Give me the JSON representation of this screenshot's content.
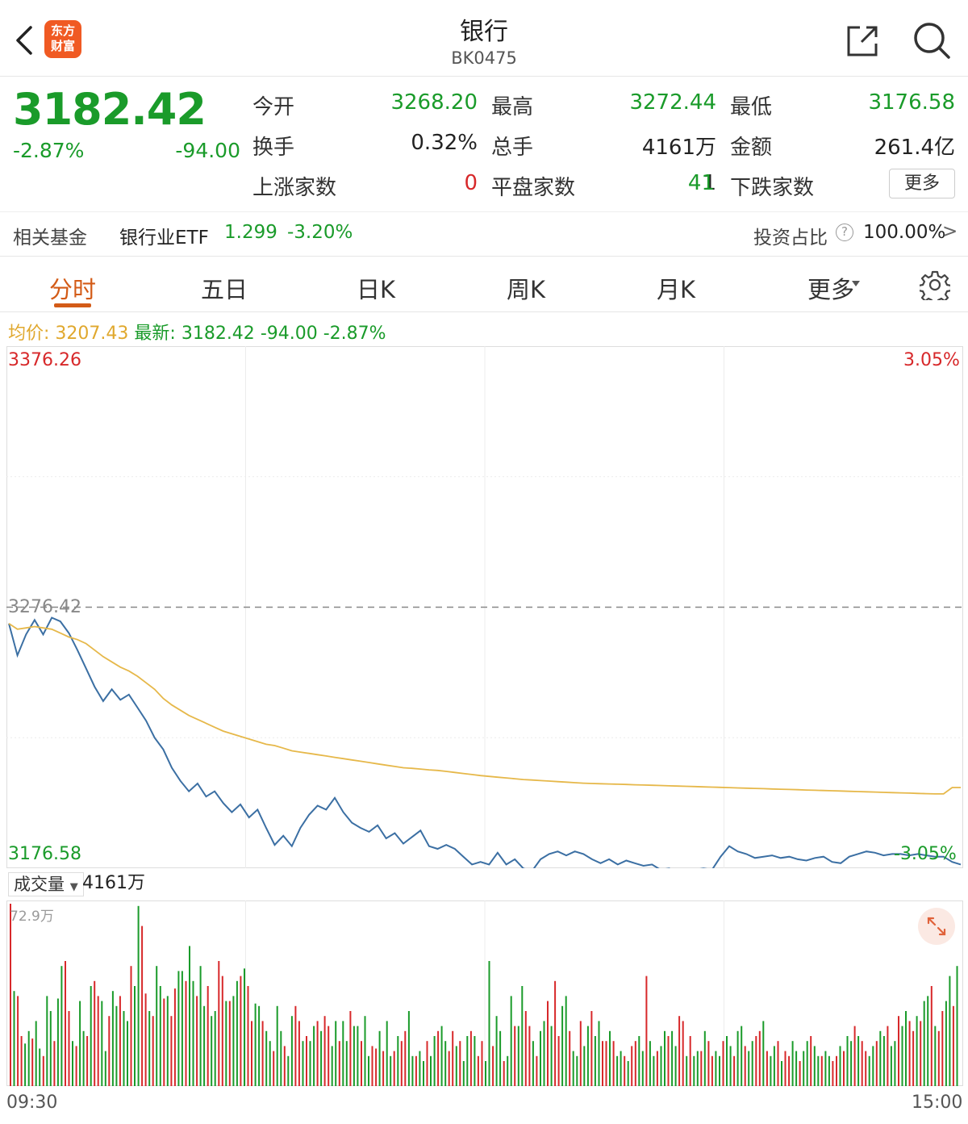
{
  "header": {
    "title": "银行",
    "code": "BK0475",
    "logo_text": "东方财富"
  },
  "quote": {
    "price": "3182.42",
    "change_pct": "-2.87%",
    "change": "-94.00",
    "fields": [
      {
        "label": "今开",
        "value": "3268.20",
        "color": "green"
      },
      {
        "label": "最高",
        "value": "3272.44",
        "color": "green"
      },
      {
        "label": "最低",
        "value": "3176.58",
        "color": "green"
      },
      {
        "label": "换手",
        "value": "0.32%",
        "color": "black"
      },
      {
        "label": "总手",
        "value": "4161万",
        "color": "black"
      },
      {
        "label": "金额",
        "value": "261.4亿",
        "color": "black"
      },
      {
        "label": "上涨家数",
        "value": "0",
        "color": "red"
      },
      {
        "label": "平盘家数",
        "value": "1",
        "color": "black"
      },
      {
        "label": "下跌家数",
        "value": "41",
        "color": "green"
      }
    ],
    "more_label": "更多"
  },
  "fund": {
    "label": "相关基金",
    "name": "银行业ETF",
    "price": "1.299",
    "change_pct": "-3.20%",
    "ratio_label": "投资占比",
    "ratio_value": "100.00%",
    "chevron": ">"
  },
  "tabs": [
    {
      "label": "分时",
      "active": true
    },
    {
      "label": "五日",
      "active": false
    },
    {
      "label": "日K",
      "active": false
    },
    {
      "label": "周K",
      "active": false
    },
    {
      "label": "月K",
      "active": false
    },
    {
      "label": "更多",
      "active": false
    }
  ],
  "info_line": {
    "avg_label": "均价:",
    "avg_value": "3207.43",
    "latest_label": "最新:",
    "latest_value": "3182.42",
    "latest_change": "-94.00",
    "latest_pct": "-2.87%"
  },
  "axis": {
    "top_price": "3376.26",
    "top_pct": "3.05%",
    "mid_price": "3276.42",
    "bottom_price": "3176.58",
    "bottom_pct": "-3.05%",
    "vol_max": "72.9万",
    "time_start": "09:30",
    "time_end": "15:00"
  },
  "volume": {
    "selector_label": "成交量",
    "total": "4161万"
  },
  "colors": {
    "up": "#d7282a",
    "down": "#1a9b2a",
    "price_line": "#3b6fa3",
    "avg_line": "#e6b84a",
    "accent": "#d35b17"
  },
  "chart_data": {
    "type": "line",
    "ylim": [
      3176.58,
      3376.26
    ],
    "prev_close": 3276.42,
    "series": [
      {
        "values": [
          3270.2,
          3258.0,
          3266.0,
          3271.5,
          3266.0,
          3272.4,
          3271.0,
          3266.5,
          3260.0,
          3253.0,
          3246.0,
          3240.5,
          3245.0,
          3241.0,
          3243.0,
          3238.0,
          3233.0,
          3226.5,
          3222.0,
          3215.0,
          3210.0,
          3206.0,
          3209.0,
          3204.0,
          3206.0,
          3201.5,
          3198.0,
          3201.0,
          3196.0,
          3199.0,
          3192.0,
          3185.5,
          3189.0,
          3185.0,
          3192.0,
          3197.0,
          3200.5,
          3199.0,
          3203.5,
          3198.0,
          3194.0,
          3192.0,
          3190.5,
          3193.0,
          3188.0,
          3190.0,
          3186.0,
          3188.5,
          3191.0,
          3185.0,
          3184.0,
          3185.5,
          3184.0,
          3181.0,
          3178.0,
          3179.0,
          3178.0,
          3182.5,
          3178.0,
          3180.0,
          3176.5,
          3175.5,
          3180.0,
          3182.0,
          3183.0,
          3181.5,
          3183.0,
          3182.0,
          3180.0,
          3178.5,
          3180.0,
          3178.0,
          3179.5,
          3178.5,
          3177.5,
          3178.0,
          3176.0,
          3176.5,
          3174.0,
          3173.0,
          3176.0,
          3176.5,
          3176.0,
          3181.0,
          3185.0,
          3183.0,
          3182.0,
          3180.5,
          3181.0,
          3181.5,
          3180.5,
          3181.0,
          3180.0,
          3179.5,
          3180.5,
          3181.0,
          3179.0,
          3178.5,
          3181.0,
          3182.0,
          3183.0,
          3182.5,
          3181.5,
          3182.0,
          3182.0,
          3181.5,
          3182.0,
          3181.5,
          3181.0,
          3181.0,
          3179.0,
          3178.0
        ],
        "color": "#3b6fa3"
      },
      {
        "values": [
          3270.2,
          3268.0,
          3268.5,
          3269.0,
          3268.5,
          3268.0,
          3266.5,
          3265.0,
          3264.0,
          3262.5,
          3260.0,
          3257.5,
          3255.5,
          3253.5,
          3252.0,
          3250.0,
          3247.5,
          3245.0,
          3241.5,
          3239.0,
          3237.0,
          3235.0,
          3233.5,
          3232.0,
          3230.5,
          3229.0,
          3228.0,
          3227.0,
          3226.0,
          3225.0,
          3224.0,
          3223.5,
          3222.5,
          3221.5,
          3221.0,
          3220.5,
          3220.0,
          3219.5,
          3219.0,
          3218.5,
          3218.0,
          3217.5,
          3217.0,
          3216.5,
          3216.0,
          3215.5,
          3215.0,
          3214.8,
          3214.5,
          3214.2,
          3214.0,
          3213.6,
          3213.2,
          3212.8,
          3212.4,
          3212.0,
          3211.7,
          3211.4,
          3211.1,
          3210.8,
          3210.5,
          3210.3,
          3210.1,
          3209.9,
          3209.7,
          3209.5,
          3209.3,
          3209.1,
          3209.0,
          3208.9,
          3208.8,
          3208.7,
          3208.6,
          3208.5,
          3208.4,
          3208.3,
          3208.2,
          3208.1,
          3208.0,
          3207.9,
          3207.8,
          3207.7,
          3207.6,
          3207.5,
          3207.4,
          3207.3,
          3207.2,
          3207.1,
          3207.0,
          3206.9,
          3206.8,
          3206.7,
          3206.6,
          3206.5,
          3206.4,
          3206.3,
          3206.2,
          3206.1,
          3206.0,
          3205.9,
          3205.8,
          3205.7,
          3205.6,
          3205.5,
          3205.4,
          3205.3,
          3205.2,
          3205.1,
          3205.0,
          3205.0,
          3207.43,
          3207.43
        ],
        "color": "#e6b84a"
      }
    ],
    "volume": [
      72.9,
      38,
      36,
      20,
      17,
      22,
      19,
      26,
      15,
      12,
      36,
      30,
      18,
      35,
      48,
      50,
      30,
      18,
      16,
      34,
      22,
      20,
      40,
      42,
      36,
      34,
      14,
      28,
      38,
      32,
      36,
      30,
      26,
      48,
      40,
      72,
      64,
      37,
      30,
      28,
      48,
      40,
      35,
      36,
      28,
      39,
      46,
      46,
      42,
      56,
      42,
      36,
      48,
      32,
      40,
      28,
      30,
      50,
      44,
      34,
      34,
      36,
      42,
      44,
      47,
      40,
      26,
      33,
      32,
      26,
      22,
      18,
      14,
      32,
      22,
      16,
      12,
      28,
      32,
      26,
      18,
      20,
      18,
      24,
      26,
      22,
      28,
      24,
      16,
      26,
      18,
      26,
      18,
      30,
      24,
      24,
      18,
      28,
      12,
      16,
      15,
      22,
      14,
      26,
      12,
      14,
      20,
      18,
      22,
      30,
      12,
      12,
      14,
      10,
      18,
      12,
      20,
      22,
      24,
      18,
      14,
      22,
      16,
      18,
      10,
      20,
      22,
      20,
      12,
      18,
      10,
      50,
      16,
      28,
      22,
      10,
      12,
      36,
      24,
      24,
      40,
      30,
      24,
      18,
      12,
      22,
      26,
      34,
      24,
      42,
      20,
      32,
      36,
      22,
      14,
      12,
      26,
      16,
      24,
      30,
      20,
      26,
      18,
      18,
      22,
      18,
      12,
      14,
      12,
      10,
      16,
      18,
      20,
      14,
      44,
      18,
      12,
      14,
      16,
      22,
      20,
      22,
      16,
      28,
      26,
      12,
      20,
      12,
      14,
      14,
      22,
      18,
      12,
      14,
      12,
      18,
      20,
      16,
      12,
      22,
      24,
      16,
      14,
      18,
      20,
      22,
      26,
      14,
      12,
      16,
      18,
      10,
      14,
      12,
      18,
      14,
      10,
      14,
      18,
      20,
      16,
      12,
      12,
      14,
      12,
      10,
      12,
      16,
      14,
      20,
      18,
      24,
      20,
      18,
      14,
      12,
      16,
      18,
      22,
      20,
      24,
      16,
      18,
      28,
      24,
      30,
      26,
      22,
      28,
      26,
      34,
      36,
      40,
      24,
      22,
      30,
      34,
      44,
      32,
      48
    ],
    "volume_max": 72.9
  }
}
